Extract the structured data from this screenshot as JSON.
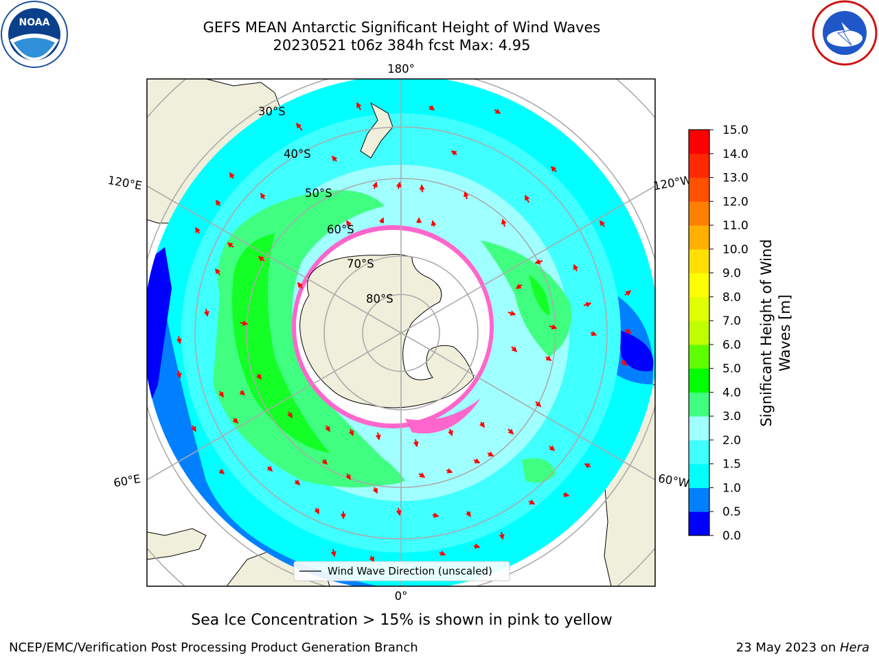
{
  "title_line1": "GEFS MEAN Antarctic Significant Height of Wind Waves",
  "title_line2": "20230521 t06z 384h fcst   Max: 4.95",
  "logos": {
    "left": "noaa-logo",
    "right": "nws-logo"
  },
  "map": {
    "projection": "south-polar-stereographic",
    "longitude_labels": [
      "180°",
      "120°E",
      "120°W",
      "60°E",
      "60°W",
      "0°"
    ],
    "latitude_labels": [
      "30°S",
      "40°S",
      "50°S",
      "60°S",
      "70°S",
      "80°S"
    ],
    "legend_entry": "Wind Wave Direction (unscaled)",
    "arrow_color": "#ff0000",
    "land_color": "#efefdb",
    "sea_ice_colors": [
      "#ff66cc",
      "#ffff00"
    ]
  },
  "colorbar": {
    "label": "Significant Height of Wind Waves [m]",
    "ticks": [
      "0.0",
      "0.5",
      "1.0",
      "1.5",
      "2.0",
      "3.0",
      "4.0",
      "5.0",
      "6.0",
      "7.0",
      "8.0",
      "9.0",
      "10.0",
      "11.0",
      "12.0",
      "13.0",
      "14.0",
      "15.0"
    ],
    "colors": [
      "#0000ff",
      "#0080ff",
      "#00ffff",
      "#40ffff",
      "#a0ffff",
      "#40ff80",
      "#00ff00",
      "#60ff00",
      "#c0ff00",
      "#e0ff00",
      "#ffff00",
      "#ffe000",
      "#ffb000",
      "#ff8000",
      "#ff5000",
      "#ff2800",
      "#ff0000"
    ]
  },
  "caption": "Sea Ice Concentration > 15% is shown in pink to yellow",
  "footer_left": "NCEP/EMC/Verification Post Processing Product Generation Branch",
  "footer_right_date": "23 May 2023 on ",
  "footer_right_host": "Hera"
}
